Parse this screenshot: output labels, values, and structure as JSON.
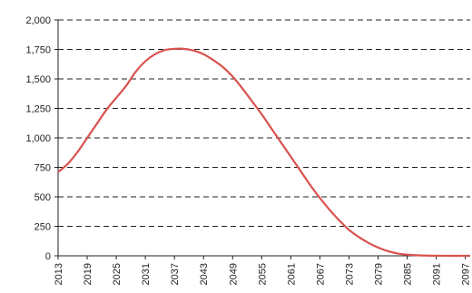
{
  "chart_data": {
    "type": "line",
    "title": "",
    "xlabel": "",
    "ylabel": "",
    "x_ticks": [
      "2013",
      "2019",
      "2025",
      "2031",
      "2037",
      "2043",
      "2049",
      "2055",
      "2061",
      "2067",
      "2073",
      "2079",
      "2085",
      "2091",
      "2097"
    ],
    "y_ticks": [
      "0",
      "250",
      "500",
      "750",
      "1,000",
      "1,250",
      "1,500",
      "1,750",
      "2,000"
    ],
    "xlim": [
      2013,
      2098
    ],
    "ylim": [
      0,
      2000
    ],
    "grid": "horizontal dashed",
    "legend": "none",
    "colors": {
      "series": "#d9534f",
      "axis": "#222222"
    },
    "series": [
      {
        "x": [
          2013,
          2015,
          2017,
          2019,
          2021,
          2023,
          2025,
          2027,
          2029,
          2031,
          2033,
          2035,
          2037,
          2039,
          2041,
          2043,
          2045,
          2047,
          2049,
          2051,
          2053,
          2055,
          2057,
          2059,
          2061,
          2063,
          2065,
          2067,
          2069,
          2071,
          2073,
          2075,
          2077,
          2079,
          2081,
          2083,
          2085,
          2087,
          2089,
          2091,
          2093,
          2095,
          2098
        ],
        "y": [
          710,
          780,
          880,
          1000,
          1120,
          1240,
          1340,
          1440,
          1560,
          1650,
          1710,
          1745,
          1755,
          1755,
          1740,
          1710,
          1660,
          1600,
          1520,
          1420,
          1310,
          1200,
          1080,
          960,
          840,
          720,
          600,
          490,
          390,
          300,
          220,
          160,
          110,
          70,
          40,
          20,
          10,
          5,
          2,
          1,
          0,
          0,
          0
        ]
      }
    ]
  }
}
